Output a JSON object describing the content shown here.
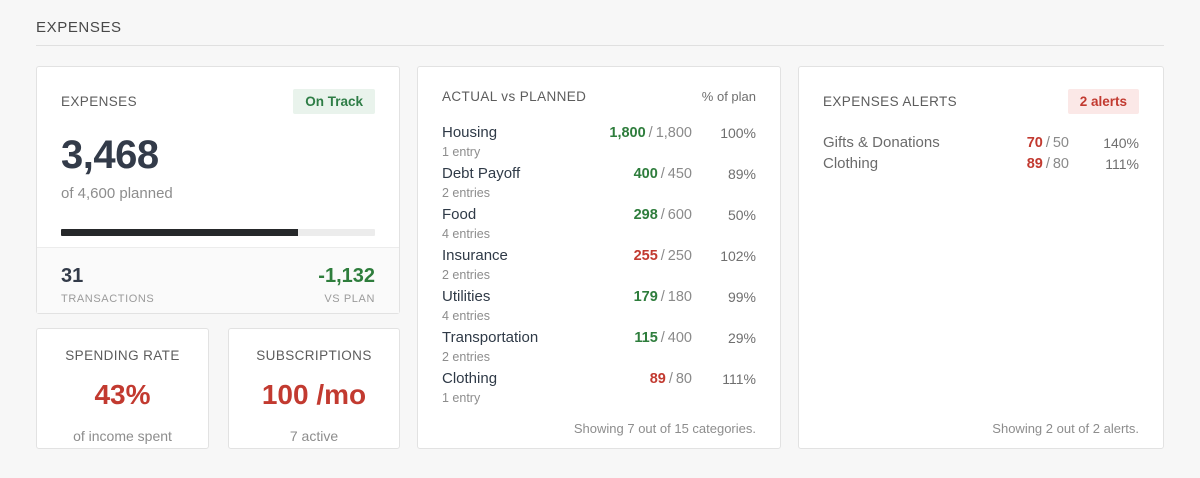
{
  "page": {
    "title": "EXPENSES"
  },
  "colors": {
    "background": "#f7f7f7",
    "card_border": "#e2e2e2",
    "green": "#2e7d3c",
    "red": "#c23a30",
    "dark_text": "#333b49",
    "muted_text": "#8d8d8d",
    "progress_fill": "#26282a",
    "badge_green_bg": "#e9f3ec",
    "badge_red_bg": "#fbe8e7"
  },
  "separators": {
    "slash": "/"
  },
  "summary_card": {
    "title": "EXPENSES",
    "badge": "On Track",
    "total": "3,468",
    "subtitle": "of 4,600 planned",
    "progress_pct": 75.4,
    "stats": [
      {
        "value": "31",
        "label": "TRANSACTIONS",
        "color": "dark"
      },
      {
        "value": "-1,132",
        "label": "VS PLAN",
        "color": "green"
      }
    ]
  },
  "mini_cards": [
    {
      "title": "SPENDING RATE",
      "value": "43%",
      "caption": "of income spent"
    },
    {
      "title": "SUBSCRIPTIONS",
      "value": "100 /mo",
      "caption": "7 active"
    }
  ],
  "actual_vs_planned": {
    "title": "ACTUAL vs PLANNED",
    "column_header": "% of plan",
    "rows": [
      {
        "name": "Housing",
        "entries": "1 entry",
        "actual": "1,800",
        "planned": "1,800",
        "pct": "100%",
        "actual_color": "green"
      },
      {
        "name": "Debt Payoff",
        "entries": "2 entries",
        "actual": "400",
        "planned": "450",
        "pct": "89%",
        "actual_color": "green"
      },
      {
        "name": "Food",
        "entries": "4 entries",
        "actual": "298",
        "planned": "600",
        "pct": "50%",
        "actual_color": "green"
      },
      {
        "name": "Insurance",
        "entries": "2 entries",
        "actual": "255",
        "planned": "250",
        "pct": "102%",
        "actual_color": "red"
      },
      {
        "name": "Utilities",
        "entries": "4 entries",
        "actual": "179",
        "planned": "180",
        "pct": "99%",
        "actual_color": "green"
      },
      {
        "name": "Transportation",
        "entries": "2 entries",
        "actual": "115",
        "planned": "400",
        "pct": "29%",
        "actual_color": "green"
      },
      {
        "name": "Clothing",
        "entries": "1 entry",
        "actual": "89",
        "planned": "80",
        "pct": "111%",
        "actual_color": "red"
      }
    ],
    "footer": "Showing 7 out of 15 categories."
  },
  "alerts_card": {
    "title": "EXPENSES ALERTS",
    "badge": "2 alerts",
    "rows": [
      {
        "name": "Gifts & Donations",
        "actual": "70",
        "planned": "50",
        "pct": "140%",
        "actual_color": "red"
      },
      {
        "name": "Clothing",
        "actual": "89",
        "planned": "80",
        "pct": "111%",
        "actual_color": "red"
      }
    ],
    "footer": "Showing 2 out of 2 alerts."
  }
}
